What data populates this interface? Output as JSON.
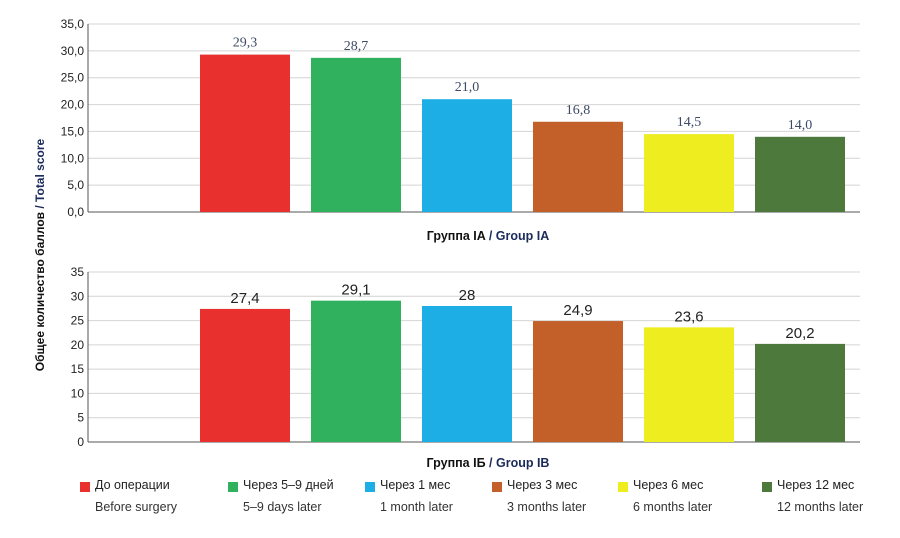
{
  "y_axis_label_ru": "Общее количество баллов",
  "y_axis_label_sep": " / ",
  "y_axis_label_en": "Total score",
  "categories": [
    {
      "ru": "До операции",
      "en": "Before surgery",
      "color": "#e8302f"
    },
    {
      "ru": "Через 5–9 дней",
      "en": "5–9 days later",
      "color": "#2fb15d"
    },
    {
      "ru": "Через 1 мес",
      "en": "1 month later",
      "color": "#1eaee6"
    },
    {
      "ru": "Через 3 мес",
      "en": "3 months later",
      "color": "#c35f28"
    },
    {
      "ru": "Через 6 мес",
      "en": "6 months later",
      "color": "#eded1f"
    },
    {
      "ru": "Через 12 мес",
      "en": "12 months later",
      "color": "#4d7a3c"
    }
  ],
  "chart_data": [
    {
      "type": "bar",
      "caption_ru": "Группа IA",
      "caption_sep": " / ",
      "caption_en": "Group IA",
      "categories": [
        "До операции",
        "Через 5–9 дней",
        "Через 1 мес",
        "Через 3 мес",
        "Через 6 мес",
        "Через 12 мес"
      ],
      "values": [
        29.3,
        28.7,
        21.0,
        16.8,
        14.5,
        14.0
      ],
      "value_labels": [
        "29,3",
        "28,7",
        "21,0",
        "16,8",
        "14,5",
        "14,0"
      ],
      "ylim": [
        0,
        35
      ],
      "yticks": [
        "0,0",
        "5,0",
        "10,0",
        "15,0",
        "20,0",
        "25,0",
        "30,0",
        "35,0"
      ],
      "grid": true
    },
    {
      "type": "bar",
      "caption_ru": "Группа IБ",
      "caption_sep": " / ",
      "caption_en": "Group IB",
      "categories": [
        "До операции",
        "Через 5–9 дней",
        "Через 1 мес",
        "Через 3 мес",
        "Через 6 мес",
        "Через 12 мес"
      ],
      "values": [
        27.4,
        29.1,
        28,
        24.9,
        23.6,
        20.2
      ],
      "value_labels": [
        "27,4",
        "29,1",
        "28",
        "24,9",
        "23,6",
        "20,2"
      ],
      "ylim": [
        0,
        35
      ],
      "yticks": [
        "0",
        "5",
        "10",
        "15",
        "20",
        "25",
        "30",
        "35"
      ],
      "grid": true
    }
  ]
}
